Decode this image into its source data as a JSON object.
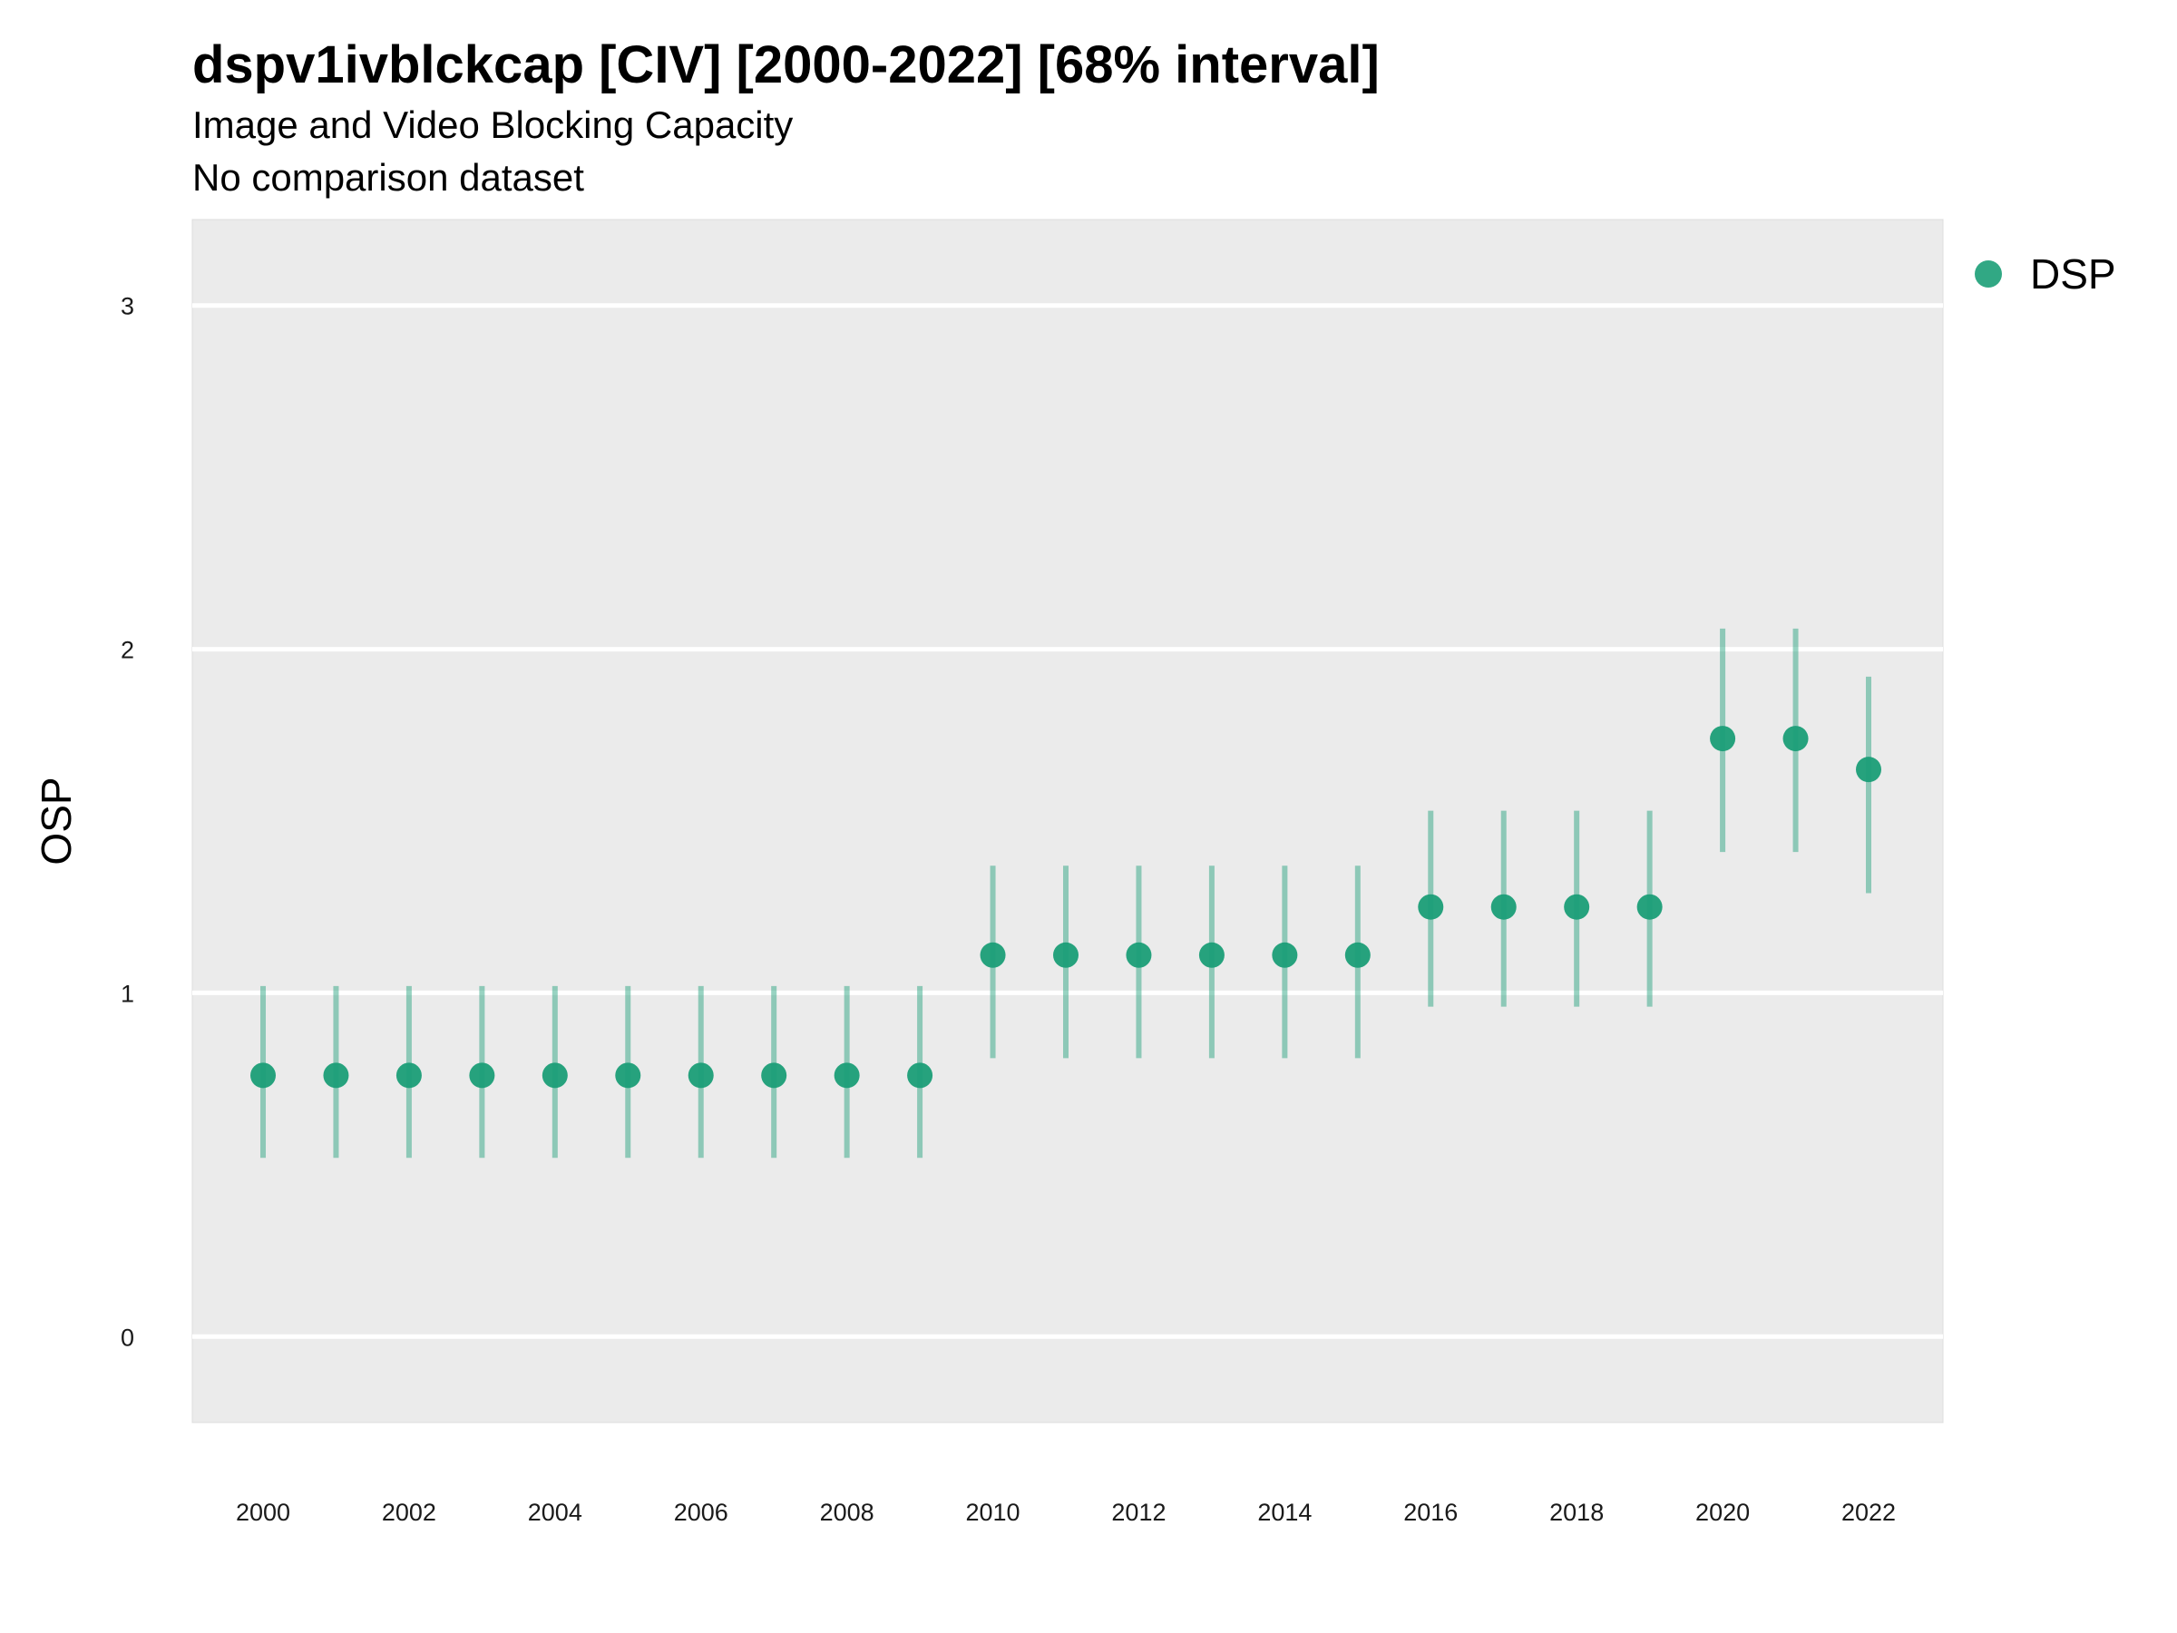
{
  "title": "dspv1ivblckcap [CIV] [2000-2022] [68% interval]",
  "subtitle": "Image and Video Blocking Capacity",
  "subtitle2": "No comparison dataset",
  "colors": {
    "point": "#1b9e77",
    "panel": "#ebebeb",
    "grid": "#ffffff"
  },
  "chart_data": {
    "type": "scatter",
    "ylabel": "OSP",
    "xlabel": "",
    "ylim": [
      -0.25,
      3.25
    ],
    "xlim": [
      1999,
      2023
    ],
    "yticks": [
      0,
      1,
      2,
      3
    ],
    "xticks": [
      2000,
      2002,
      2004,
      2006,
      2008,
      2010,
      2012,
      2014,
      2016,
      2018,
      2020,
      2022
    ],
    "grid": true,
    "legend_position": "right",
    "series": [
      {
        "name": "DSP",
        "x": [
          2000,
          2001,
          2002,
          2003,
          2004,
          2005,
          2006,
          2007,
          2008,
          2009,
          2010,
          2011,
          2012,
          2013,
          2014,
          2015,
          2016,
          2017,
          2018,
          2019,
          2020,
          2021,
          2022
        ],
        "y": [
          0.76,
          0.76,
          0.76,
          0.76,
          0.76,
          0.76,
          0.76,
          0.76,
          0.76,
          0.76,
          1.11,
          1.11,
          1.11,
          1.11,
          1.11,
          1.11,
          1.25,
          1.25,
          1.25,
          1.25,
          1.74,
          1.74,
          1.65
        ],
        "lower": [
          0.52,
          0.52,
          0.52,
          0.52,
          0.52,
          0.52,
          0.52,
          0.52,
          0.52,
          0.52,
          0.81,
          0.81,
          0.81,
          0.81,
          0.81,
          0.81,
          0.96,
          0.96,
          0.96,
          0.96,
          1.41,
          1.41,
          1.29
        ],
        "upper": [
          1.02,
          1.02,
          1.02,
          1.02,
          1.02,
          1.02,
          1.02,
          1.02,
          1.02,
          1.02,
          1.37,
          1.37,
          1.37,
          1.37,
          1.37,
          1.37,
          1.53,
          1.53,
          1.53,
          1.53,
          2.06,
          2.06,
          1.92
        ]
      }
    ]
  }
}
